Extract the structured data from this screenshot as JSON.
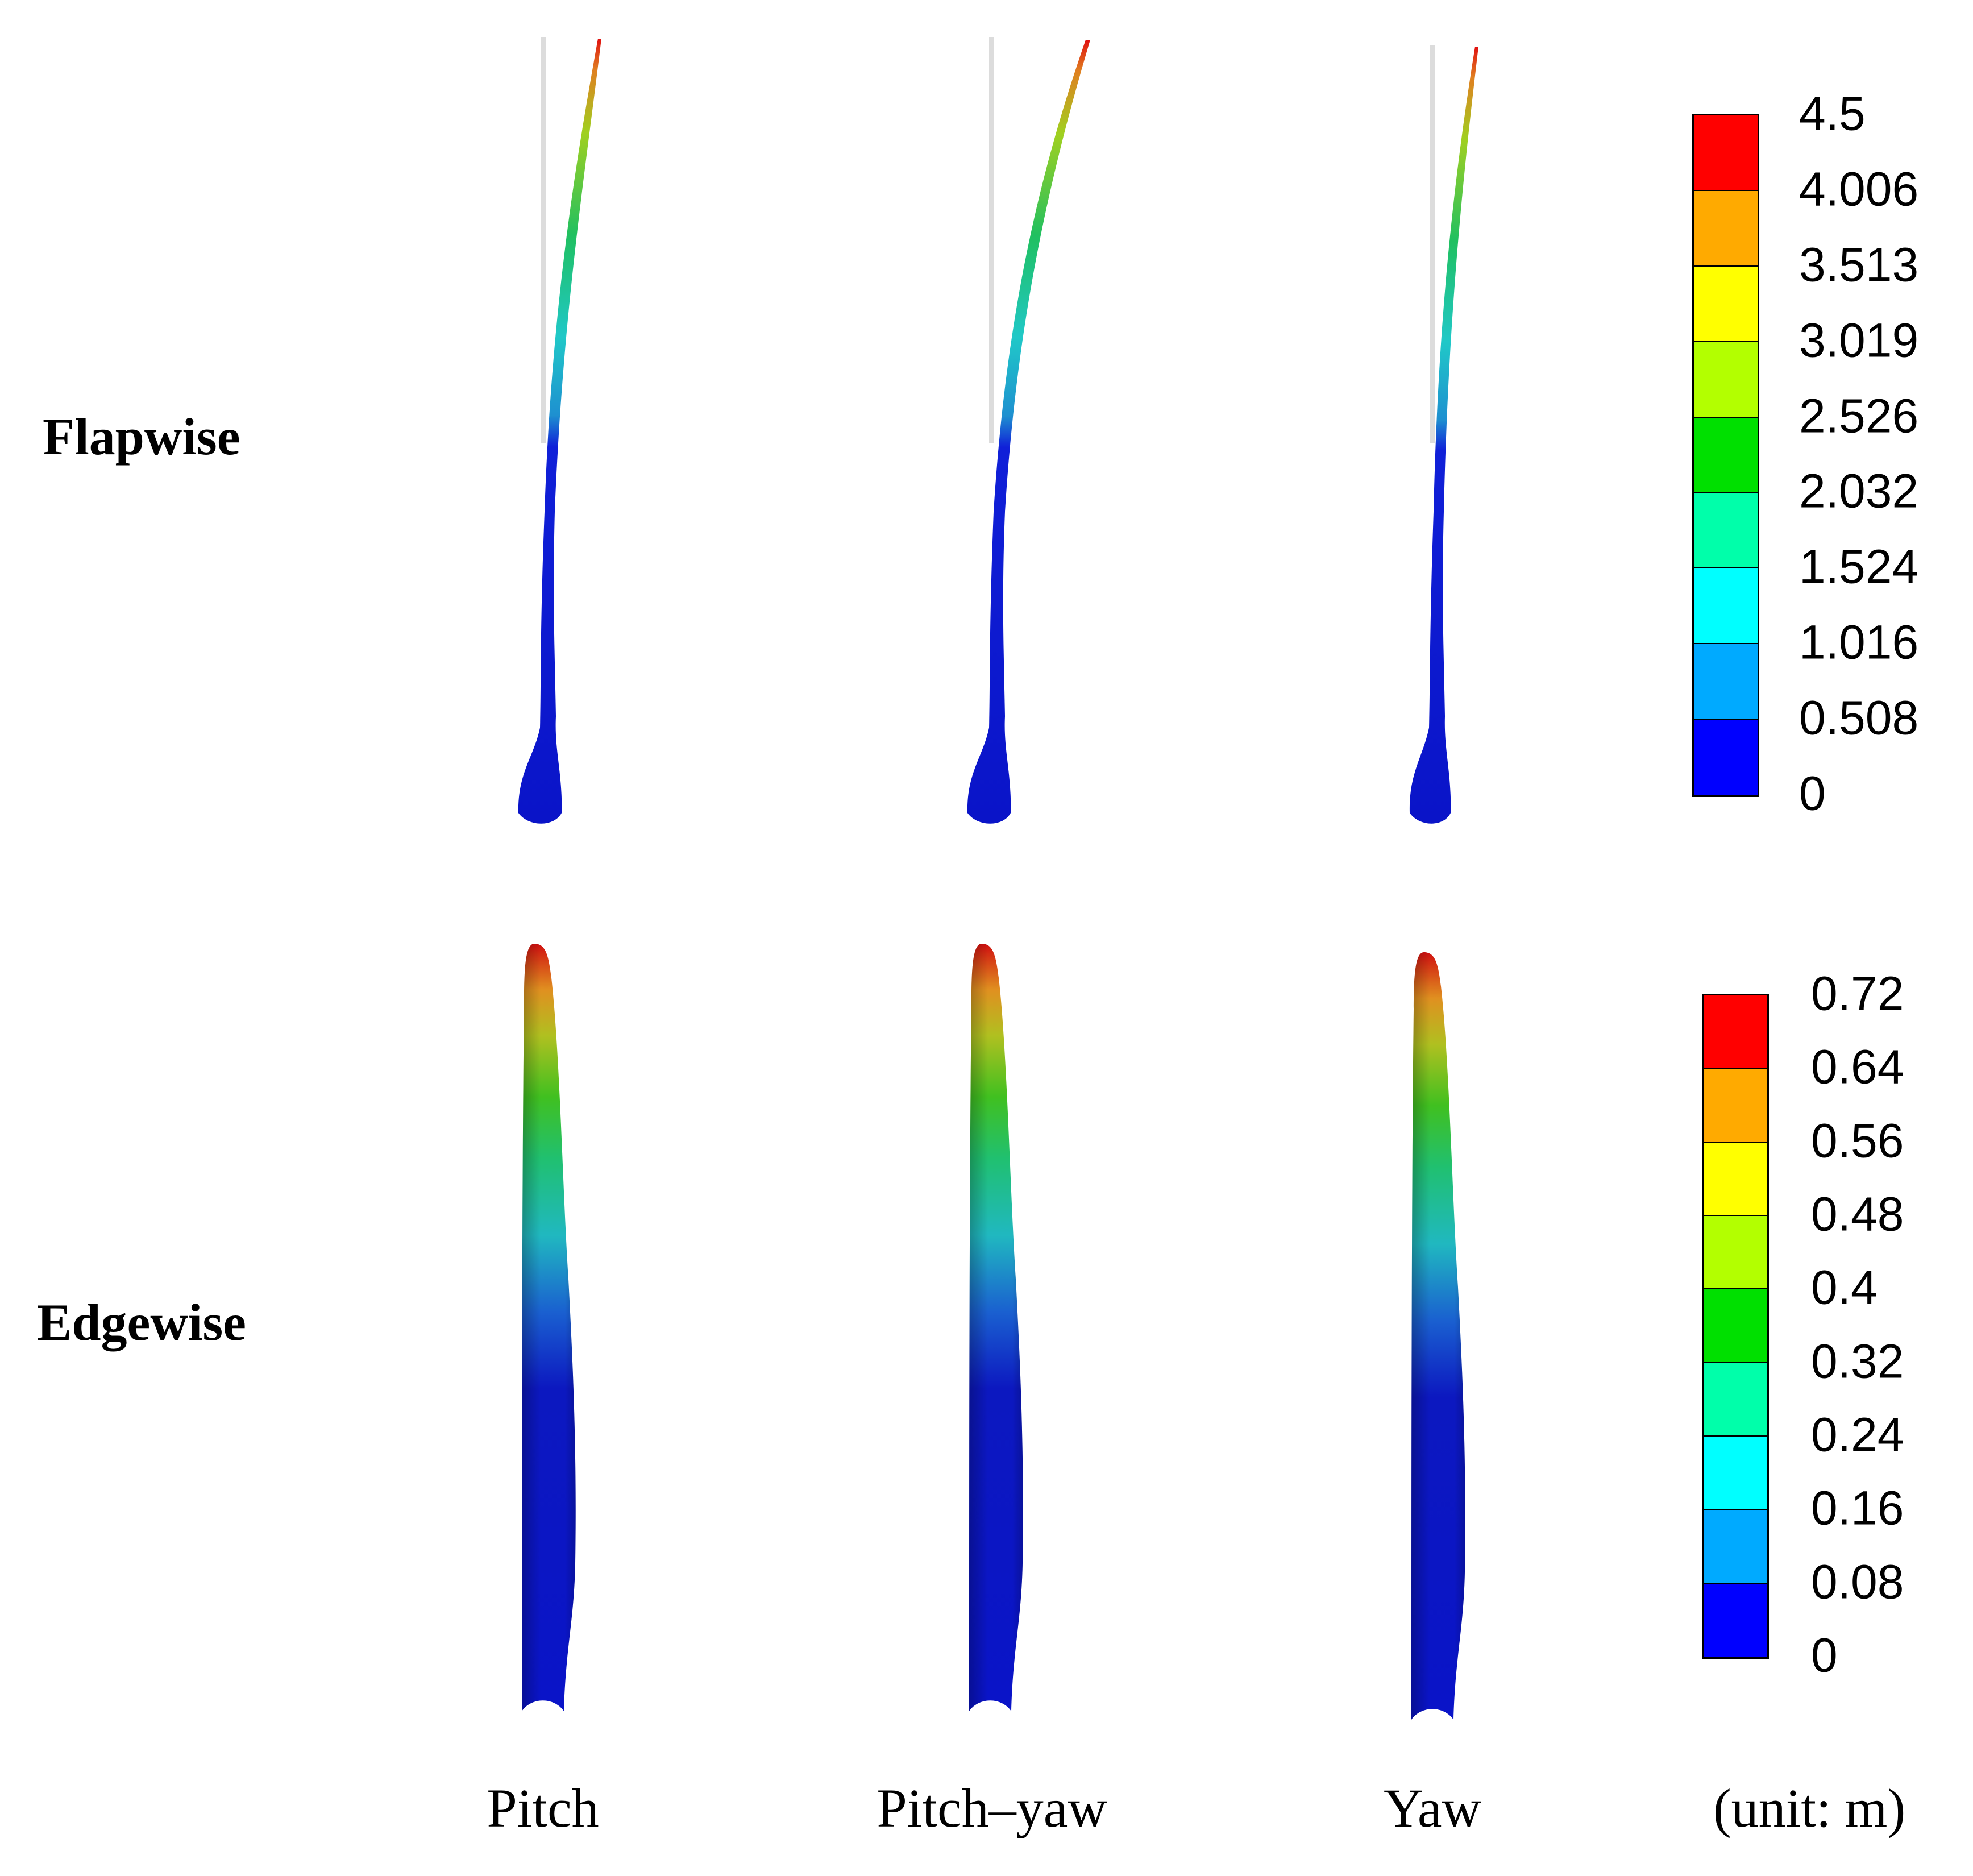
{
  "row_labels": {
    "flapwise": "Flapwise",
    "edgewise": "Edgewise"
  },
  "column_labels": {
    "pitch": "Pitch",
    "pitch_yaw": "Pitch–yaw",
    "yaw": "Yaw",
    "unit": "(unit: m)"
  },
  "legends": {
    "flapwise": {
      "labels": [
        "4.5",
        "4.006",
        "3.513",
        "3.019",
        "2.526",
        "2.032",
        "1.524",
        "1.016",
        "0.508",
        "0"
      ],
      "colors": [
        "#ff0000",
        "#ffaa00",
        "#ffff00",
        "#b3ff00",
        "#00e000",
        "#00ffaa",
        "#00ffff",
        "#00aaff",
        "#0000ff"
      ]
    },
    "edgewise": {
      "labels": [
        "0.72",
        "0.64",
        "0.56",
        "0.48",
        "0.4",
        "0.32",
        "0.24",
        "0.16",
        "0.08",
        "0"
      ],
      "colors": [
        "#ff0000",
        "#ffaa00",
        "#ffff00",
        "#b3ff00",
        "#00e000",
        "#00ffaa",
        "#00ffff",
        "#00aaff",
        "#0000ff"
      ]
    }
  }
}
